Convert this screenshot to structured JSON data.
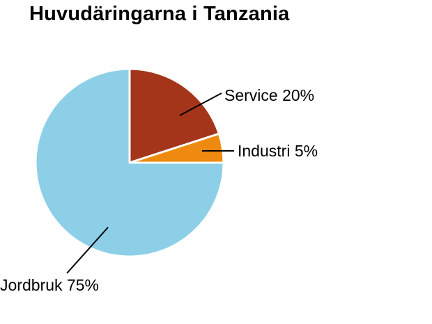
{
  "title": "Huvudäringarna i Tanzania",
  "chart_data": {
    "type": "pie",
    "title": "Huvudäringarna i Tanzania",
    "slices": [
      {
        "label": "Service",
        "value": 20,
        "display": "Service 20%",
        "color": "#a5351a"
      },
      {
        "label": "Industri",
        "value": 5,
        "display": "Industri 5%",
        "color": "#ee8a10"
      },
      {
        "label": "Jordbruk",
        "value": 75,
        "display": "Jordbruk 75%",
        "color": "#8ecfe8"
      }
    ],
    "start_angle": "12 o'clock",
    "direction": "clockwise",
    "legend": "none"
  }
}
